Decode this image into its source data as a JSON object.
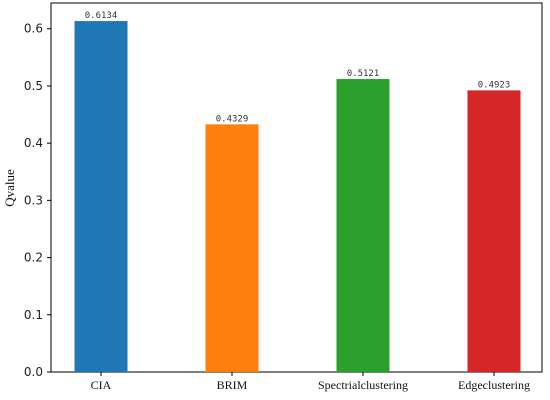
{
  "chart_data": {
    "type": "bar",
    "title": "",
    "xlabel": "",
    "ylabel": "Qvalue",
    "categories": [
      "CIA",
      "BRIM",
      "Spectrialclustering",
      "Edgeclustering"
    ],
    "values": [
      0.6134,
      0.4329,
      0.5121,
      0.4923
    ],
    "value_labels": [
      "0.6134",
      "0.4329",
      "0.5121",
      "0.4923"
    ],
    "colors": [
      "#1f77b4",
      "#ff7f0e",
      "#2ca02c",
      "#d62728"
    ],
    "ylim": [
      0,
      0.645
    ],
    "yticks": [
      0.0,
      0.1,
      0.2,
      0.3,
      0.4,
      0.5,
      0.6
    ],
    "ytick_labels": [
      "0.0",
      "0.1",
      "0.2",
      "0.3",
      "0.4",
      "0.5",
      "0.6"
    ],
    "grid": false,
    "legend": "none"
  }
}
